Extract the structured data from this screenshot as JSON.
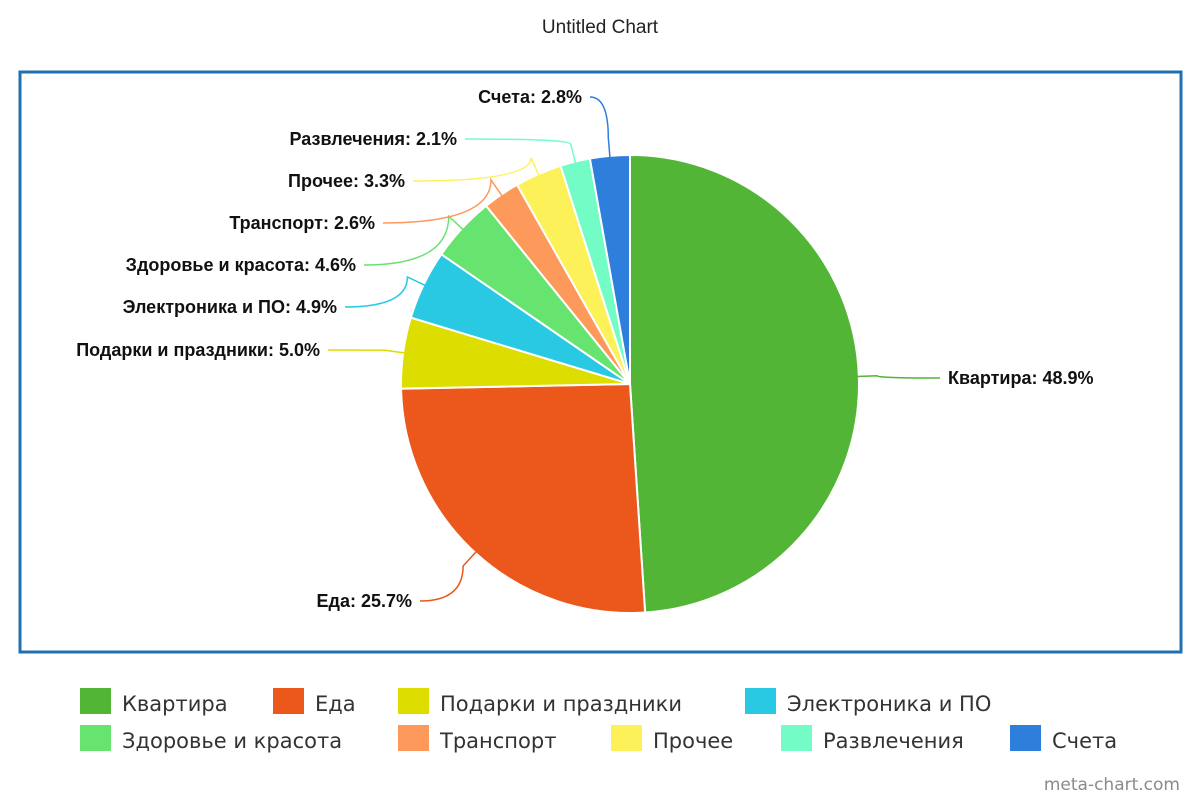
{
  "chart_data": {
    "type": "pie",
    "title": "Untitled Chart",
    "categories": [
      "Квартира",
      "Еда",
      "Подарки и праздники",
      "Электроника и ПО",
      "Здоровье и красота",
      "Транспорт",
      "Прочее",
      "Развлечения",
      "Счета"
    ],
    "values": [
      48.9,
      25.7,
      5.0,
      4.9,
      4.6,
      2.6,
      3.3,
      2.1,
      2.8
    ],
    "unit": "%",
    "colors": [
      "#52b535",
      "#ec571c",
      "#dddd00",
      "#29c9e4",
      "#66e46f",
      "#fd995b",
      "#fdf159",
      "#74fcc7",
      "#2e7fdc"
    ],
    "data_labels": [
      "Квартира: 48.9%",
      "Еда: 25.7%",
      "Подарки и праздники: 5.0%",
      "Электроника и ПО: 4.9%",
      "Здоровье и красота: 4.6%",
      "Транспорт: 2.6%",
      "Прочее: 3.3%",
      "Развлечения: 2.1%",
      "Счета: 2.8%"
    ],
    "legend_position": "bottom",
    "start_angle": "12 o'clock",
    "direction": "clockwise"
  },
  "watermark": "meta-chart.com",
  "frame_color": "#1f6fb2"
}
